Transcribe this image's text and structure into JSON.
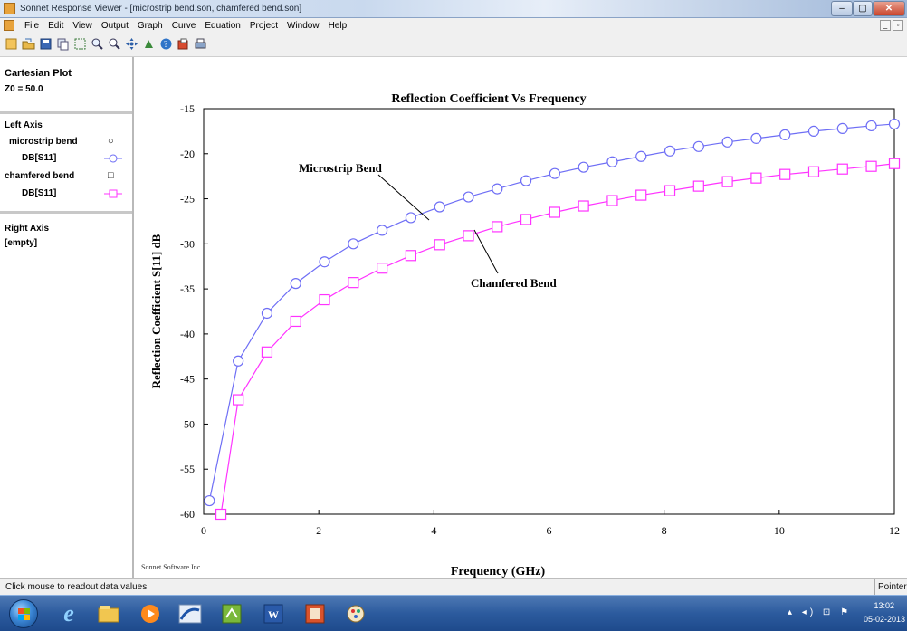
{
  "window": {
    "title": "Sonnet Response Viewer - [microstrip bend.son, chamfered bend.son]"
  },
  "menu": {
    "items": [
      "File",
      "Edit",
      "View",
      "Output",
      "Graph",
      "Curve",
      "Equation",
      "Project",
      "Window",
      "Help"
    ]
  },
  "toolbar": {
    "icons": [
      "new-icon",
      "open-icon",
      "save-icon",
      "copy-icon",
      "rect-zoom-icon",
      "zoom-in-icon",
      "zoom-out-icon",
      "pan-icon",
      "move-icon",
      "help-icon",
      "export-icon",
      "print-icon"
    ]
  },
  "left_panel": {
    "plot_type": "Cartesian Plot",
    "z0": "Z0 = 50.0",
    "left_axis_label": "Left Axis",
    "curves": [
      {
        "name": "microstrip bend",
        "symbol": "○",
        "param": "DB[S11]",
        "color": "#6e6ef5"
      },
      {
        "name": "chamfered bend",
        "symbol": "□",
        "param": "DB[S11]",
        "color": "#ff33ff"
      }
    ],
    "right_axis_label": "Right Axis",
    "right_axis_value": "[empty]"
  },
  "chart_data": {
    "type": "line",
    "title": "Reflection Coefficient Vs Frequency",
    "xlabel": "Frequency (GHz)",
    "ylabel": "Reflection Coefficient S[11] dB",
    "xlim": [
      0,
      12
    ],
    "ylim": [
      -60,
      -15
    ],
    "xticks": [
      0,
      2,
      4,
      6,
      8,
      10,
      12
    ],
    "yticks": [
      -15,
      -20,
      -25,
      -30,
      -35,
      -40,
      -45,
      -50,
      -55,
      -60
    ],
    "series": [
      {
        "name": "Microstrip Bend",
        "marker": "circle",
        "color": "#6e6ef5",
        "x": [
          0.1,
          0.6,
          1.1,
          1.6,
          2.1,
          2.6,
          3.1,
          3.6,
          4.1,
          4.6,
          5.1,
          5.6,
          6.1,
          6.6,
          7.1,
          7.6,
          8.1,
          8.6,
          9.1,
          9.6,
          10.1,
          10.6,
          11.1,
          11.6,
          12.0
        ],
        "y": [
          -58.5,
          -43.0,
          -37.7,
          -34.4,
          -32.0,
          -30.0,
          -28.5,
          -27.1,
          -25.9,
          -24.8,
          -23.9,
          -23.0,
          -22.2,
          -21.5,
          -20.9,
          -20.3,
          -19.7,
          -19.2,
          -18.7,
          -18.3,
          -17.9,
          -17.5,
          -17.2,
          -16.9,
          -16.7
        ]
      },
      {
        "name": "Chamfered Bend",
        "marker": "square",
        "color": "#ff33ff",
        "x": [
          0.3,
          0.6,
          1.1,
          1.6,
          2.1,
          2.6,
          3.1,
          3.6,
          4.1,
          4.6,
          5.1,
          5.6,
          6.1,
          6.6,
          7.1,
          7.6,
          8.1,
          8.6,
          9.1,
          9.6,
          10.1,
          10.6,
          11.1,
          11.6,
          12.0
        ],
        "y": [
          -60.0,
          -47.3,
          -42.0,
          -38.6,
          -36.2,
          -34.3,
          -32.7,
          -31.3,
          -30.1,
          -29.1,
          -28.1,
          -27.3,
          -26.5,
          -25.8,
          -25.2,
          -24.6,
          -24.1,
          -23.6,
          -23.1,
          -22.7,
          -22.3,
          -22.0,
          -21.7,
          -21.4,
          -21.1
        ]
      }
    ],
    "annotations": [
      "Microstrip Bend",
      "Chamfered Bend"
    ],
    "grid": false,
    "footer_text": "Sonnet Software Inc."
  },
  "status": {
    "message": "Click mouse to readout data values",
    "mode": "Pointer"
  },
  "taskbar": {
    "apps": [
      "ie-icon",
      "explorer-icon",
      "media-player-icon",
      "sonnet-icon",
      "calculator-icon",
      "word-icon",
      "powerpoint-icon",
      "paint-icon"
    ],
    "time": "13:02",
    "date": "05-02-2013"
  }
}
